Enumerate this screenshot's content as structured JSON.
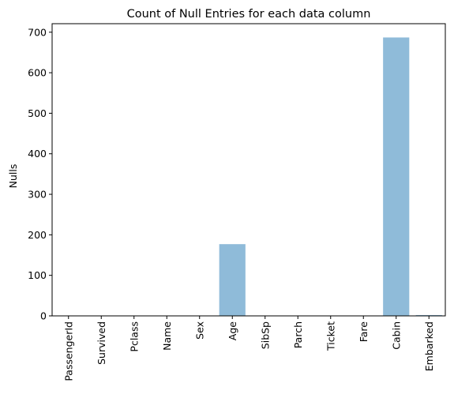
{
  "chart_data": {
    "type": "bar",
    "title": "Count of Null Entries for each data column",
    "xlabel": "",
    "ylabel": "Nulls",
    "categories": [
      "PassengerId",
      "Survived",
      "Pclass",
      "Name",
      "Sex",
      "Age",
      "SibSp",
      "Parch",
      "Ticket",
      "Fare",
      "Cabin",
      "Embarked"
    ],
    "values": [
      0,
      0,
      0,
      0,
      0,
      177,
      0,
      0,
      0,
      0,
      687,
      2
    ],
    "ylim": [
      0,
      721
    ],
    "yticks": [
      0,
      100,
      200,
      300,
      400,
      500,
      600,
      700
    ],
    "grid": false,
    "bar_color": "#1f77b4",
    "bar_alpha": 0.5
  }
}
